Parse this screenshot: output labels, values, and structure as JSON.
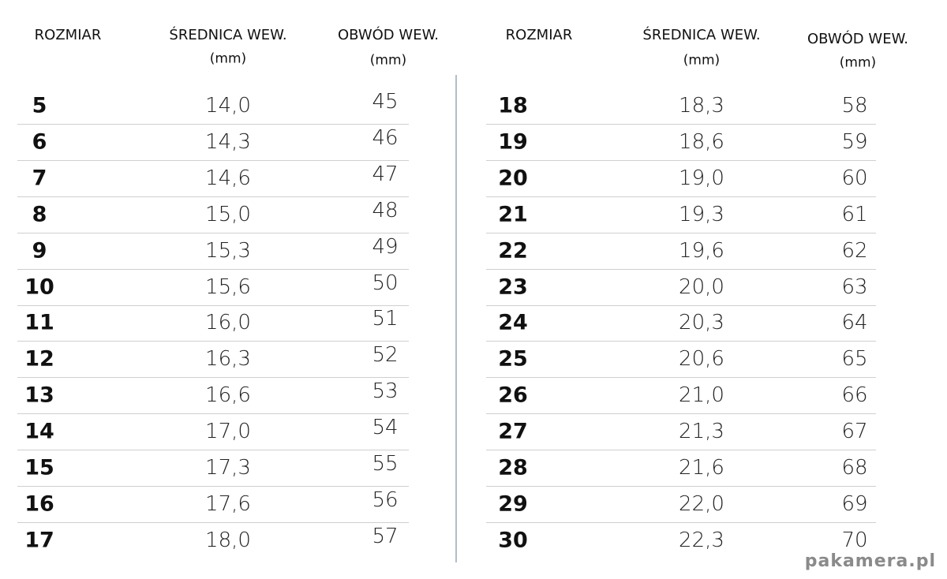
{
  "tables": [
    {
      "headers": [
        [
          "ROZMIAR"
        ],
        [
          "ŚREDNICA WEW.",
          "(mm)"
        ],
        [
          "OBWÓD WEW.",
          "(mm)"
        ]
      ],
      "rows": [
        [
          "5",
          "14,0",
          "45"
        ],
        [
          "6",
          "14,3",
          "46"
        ],
        [
          "7",
          "14,6",
          "47"
        ],
        [
          "8",
          "15,0",
          "48"
        ],
        [
          "9",
          "15,3",
          "49"
        ],
        [
          "10",
          "15,6",
          "50"
        ],
        [
          "11",
          "16,0",
          "51"
        ],
        [
          "12",
          "16,3",
          "52"
        ],
        [
          "13",
          "16,6",
          "53"
        ],
        [
          "14",
          "17,0",
          "54"
        ],
        [
          "15",
          "17,3",
          "55"
        ],
        [
          "16",
          "17,6",
          "56"
        ],
        [
          "17",
          "18,0",
          "57"
        ]
      ]
    },
    {
      "headers": [
        [
          "ROZMIAR"
        ],
        [
          "ŚREDNICA WEW.",
          "(mm)"
        ],
        [
          "OBWÓD WEW.",
          "(mm)"
        ]
      ],
      "rows": [
        [
          "18",
          "18,3",
          "58"
        ],
        [
          "19",
          "18,6",
          "59"
        ],
        [
          "20",
          "19,0",
          "60"
        ],
        [
          "21",
          "19,3",
          "61"
        ],
        [
          "22",
          "19,6",
          "62"
        ],
        [
          "23",
          "20,0",
          "63"
        ],
        [
          "24",
          "20,3",
          "64"
        ],
        [
          "25",
          "20,6",
          "65"
        ],
        [
          "26",
          "21,0",
          "66"
        ],
        [
          "27",
          "21,3",
          "67"
        ],
        [
          "28",
          "21,6",
          "68"
        ],
        [
          "29",
          "22,0",
          "69"
        ],
        [
          "30",
          "22,3",
          "70"
        ]
      ]
    }
  ],
  "watermark": "pakamera.pl"
}
